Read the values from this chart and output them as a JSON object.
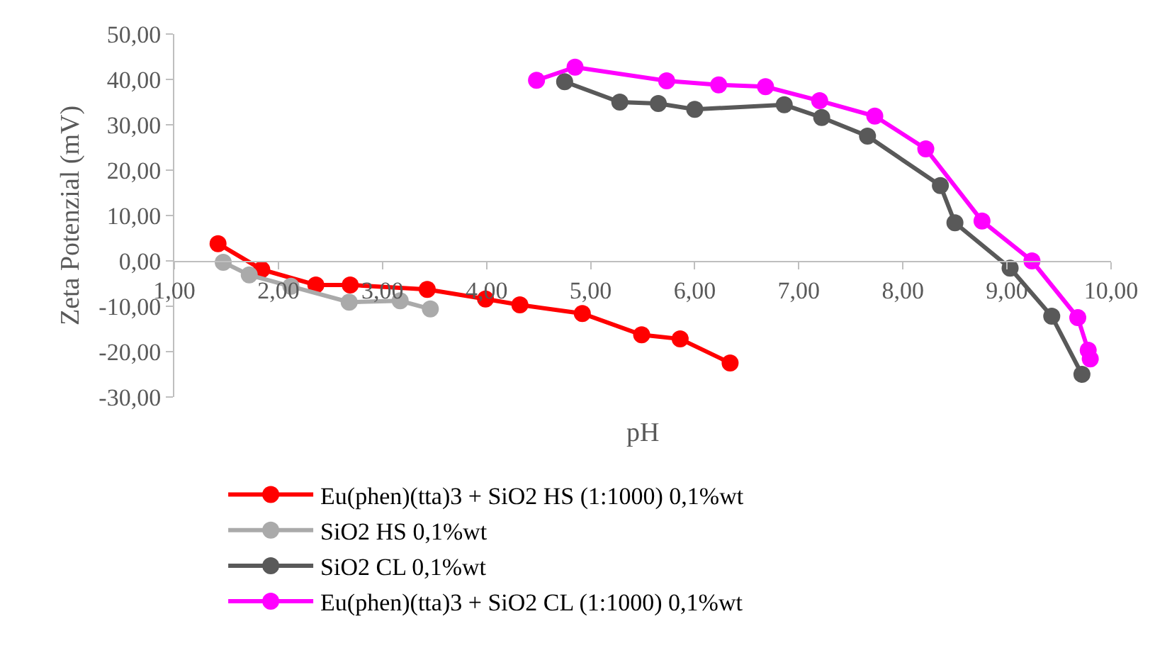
{
  "chart_data": {
    "type": "line",
    "xlabel": "pH",
    "ylabel": "Zeta Potenzial (mV)",
    "xlim": [
      1,
      10
    ],
    "ylim": [
      -30,
      50
    ],
    "xticks": [
      {
        "value": 1,
        "label": "1,00"
      },
      {
        "value": 2,
        "label": "2,00"
      },
      {
        "value": 3,
        "label": "3,00"
      },
      {
        "value": 4,
        "label": "4,00"
      },
      {
        "value": 5,
        "label": "5,00"
      },
      {
        "value": 6,
        "label": "6,00"
      },
      {
        "value": 7,
        "label": "7,00"
      },
      {
        "value": 8,
        "label": "8,00"
      },
      {
        "value": 9,
        "label": "9,00"
      },
      {
        "value": 10,
        "label": "10,00"
      }
    ],
    "yticks": [
      {
        "value": -30,
        "label": "-30,00"
      },
      {
        "value": -20,
        "label": "-20,00"
      },
      {
        "value": -10,
        "label": "-10,00"
      },
      {
        "value": 0,
        "label": "0,00"
      },
      {
        "value": 10,
        "label": "10,00"
      },
      {
        "value": 20,
        "label": "20,00"
      },
      {
        "value": 30,
        "label": "30,00"
      },
      {
        "value": 40,
        "label": "40,00"
      },
      {
        "value": 50,
        "label": "50,00"
      }
    ],
    "legend": "bottom",
    "marker": "circle",
    "line_style": "solid",
    "series": [
      {
        "name": "Eu(phen)(tta)3 + SiO2 HS (1:1000) 0,1%wt",
        "color": "#ff0000",
        "x": [
          1.42,
          1.84,
          2.36,
          2.69,
          3.43,
          3.99,
          4.32,
          4.92,
          5.49,
          5.86,
          6.34
        ],
        "values": [
          3.8,
          -1.9,
          -5.3,
          -5.3,
          -6.3,
          -8.4,
          -9.7,
          -11.6,
          -16.3,
          -17.2,
          -22.5
        ]
      },
      {
        "name": "SiO2 HS 0,1%wt",
        "color": "#aaaaaa",
        "x": [
          1.47,
          1.72,
          2.12,
          2.68,
          3.17,
          3.46
        ],
        "values": [
          -0.3,
          -3.1,
          -5.6,
          -9.1,
          -8.8,
          -10.6
        ]
      },
      {
        "name": "SiO2 CL 0,1%wt",
        "color": "#595959",
        "x": [
          4.75,
          5.28,
          5.65,
          6.0,
          6.86,
          7.22,
          7.66,
          8.36,
          8.5,
          9.03,
          9.43,
          9.72
        ],
        "values": [
          39.5,
          35.0,
          34.7,
          33.4,
          34.4,
          31.6,
          27.5,
          16.6,
          8.4,
          -1.6,
          -12.2,
          -25.0
        ]
      },
      {
        "name": "Eu(phen)(tta)3 + SiO2 CL (1:1000) 0,1%wt",
        "color": "#ff00ff",
        "x": [
          4.48,
          4.85,
          5.73,
          6.23,
          6.68,
          7.2,
          7.73,
          8.22,
          8.76,
          9.24,
          9.68,
          9.78,
          9.8
        ],
        "values": [
          39.8,
          42.7,
          39.7,
          38.8,
          38.4,
          35.3,
          31.9,
          24.7,
          8.8,
          0.0,
          -12.5,
          -19.7,
          -21.6
        ]
      }
    ]
  }
}
